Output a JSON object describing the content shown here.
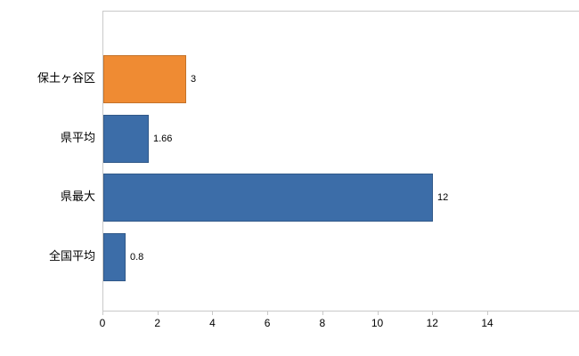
{
  "chart_data": {
    "type": "bar",
    "orientation": "horizontal",
    "title": "",
    "xlabel": "",
    "ylabel": "",
    "categories": [
      "保土ヶ谷区",
      "県平均",
      "県最大",
      "全国平均"
    ],
    "values": [
      3,
      1.66,
      12,
      0.8
    ],
    "value_labels": [
      "3",
      "1.66",
      "12",
      "0.8"
    ],
    "bar_colors": [
      "#ef8b33",
      "#3c6da8",
      "#3c6da8",
      "#3c6da8"
    ],
    "xticks": [
      0,
      2,
      4,
      6,
      8,
      10,
      12,
      14
    ],
    "xlim": [
      0,
      17.4
    ],
    "grid": false,
    "legend": "none",
    "accent_orange": "#ef8b33",
    "accent_blue": "#3c6da8",
    "frame_color": "#c9c9c9"
  }
}
